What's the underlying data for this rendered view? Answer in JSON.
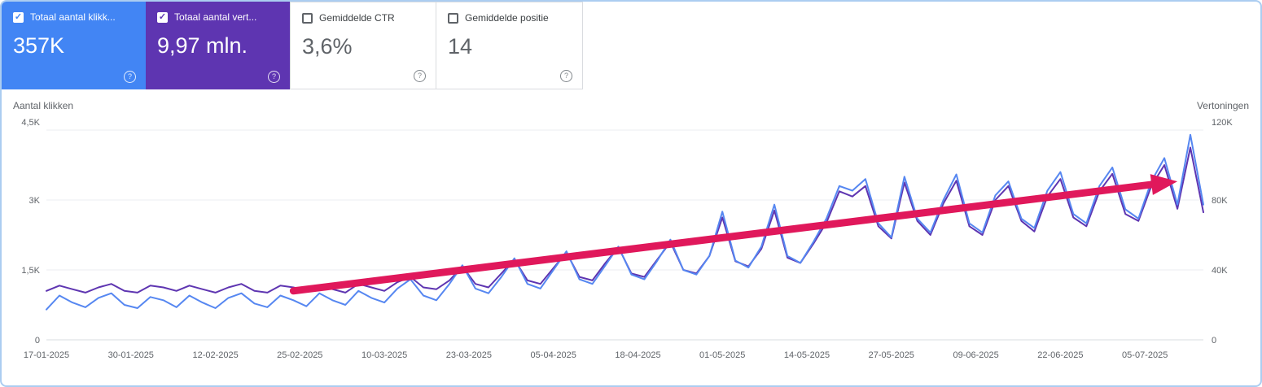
{
  "cards": [
    {
      "label": "Totaal aantal klikk...",
      "value": "357K",
      "checked": true,
      "color": "#4285f4"
    },
    {
      "label": "Totaal aantal vert...",
      "value": "9,97 mln.",
      "checked": true,
      "color": "#5e35b1"
    },
    {
      "label": "Gemiddelde CTR",
      "value": "3,6%",
      "checked": false
    },
    {
      "label": "Gemiddelde positie",
      "value": "14",
      "checked": false
    }
  ],
  "icons": {
    "help": "?",
    "check": "✓"
  },
  "chart_data": {
    "type": "line",
    "title": "Google Search Console prestaties",
    "grid": "horizontal",
    "legend_position": "none",
    "x_day_step": 2,
    "x_tick_days": [
      0,
      13,
      26,
      39,
      52,
      65,
      78,
      91,
      104,
      117,
      130,
      143,
      156,
      169
    ],
    "x_tick_labels": [
      "17-01-2025",
      "30-01-2025",
      "12-02-2025",
      "25-02-2025",
      "10-03-2025",
      "23-03-2025",
      "05-04-2025",
      "18-04-2025",
      "01-05-2025",
      "14-05-2025",
      "27-05-2025",
      "09-06-2025",
      "22-06-2025",
      "05-07-2025"
    ],
    "left_axis": {
      "label": "Aantal klikken",
      "ticks": [
        "0",
        "1,5K",
        "3K",
        "4,5K"
      ],
      "max": 4.5,
      "unit": "K clicks"
    },
    "right_axis": {
      "label": "Vertoningen",
      "ticks": [
        "0",
        "40K",
        "80K",
        "120K"
      ],
      "max": 120,
      "unit": "K impressions"
    },
    "series": [
      {
        "name": "Totaal aantal vertoningen",
        "axis": "right",
        "color": "#5e35b1",
        "values": [
          28,
          31,
          29,
          27,
          30,
          32,
          28,
          27,
          31,
          30,
          28,
          31,
          29,
          27,
          30,
          32,
          28,
          27,
          31,
          30,
          28,
          31,
          29,
          27,
          32,
          30,
          28,
          33,
          36,
          30,
          29,
          34,
          42,
          32,
          30,
          38,
          46,
          34,
          32,
          41,
          50,
          36,
          34,
          44,
          53,
          38,
          36,
          46,
          56,
          40,
          38,
          48,
          70,
          45,
          42,
          52,
          74,
          47,
          44,
          55,
          67,
          85,
          82,
          88,
          65,
          58,
          90,
          68,
          60,
          78,
          91,
          65,
          60,
          80,
          88,
          68,
          62,
          82,
          92,
          70,
          65,
          85,
          95,
          72,
          68,
          88,
          100,
          75,
          110,
          73
        ]
      },
      {
        "name": "Totaal aantal klikken",
        "axis": "left",
        "color": "#5687f1",
        "values": [
          0.65,
          0.95,
          0.8,
          0.7,
          0.9,
          1.0,
          0.75,
          0.68,
          0.92,
          0.85,
          0.7,
          0.95,
          0.8,
          0.68,
          0.9,
          1.0,
          0.78,
          0.7,
          0.95,
          0.85,
          0.72,
          1.0,
          0.85,
          0.75,
          1.05,
          0.9,
          0.8,
          1.1,
          1.3,
          0.95,
          0.85,
          1.2,
          1.6,
          1.1,
          1.0,
          1.35,
          1.75,
          1.2,
          1.1,
          1.5,
          1.9,
          1.3,
          1.2,
          1.6,
          2.0,
          1.4,
          1.3,
          1.7,
          2.15,
          1.5,
          1.4,
          1.8,
          2.75,
          1.7,
          1.55,
          2.0,
          2.9,
          1.8,
          1.65,
          2.1,
          2.6,
          3.3,
          3.2,
          3.45,
          2.5,
          2.2,
          3.5,
          2.6,
          2.3,
          3.0,
          3.55,
          2.5,
          2.3,
          3.1,
          3.4,
          2.6,
          2.4,
          3.2,
          3.6,
          2.7,
          2.5,
          3.3,
          3.7,
          2.8,
          2.6,
          3.4,
          3.9,
          2.9,
          4.4,
          2.9
        ]
      }
    ],
    "annotation": {
      "type": "arrow",
      "color": "#e0185b",
      "axis": "left",
      "from": {
        "day": 38,
        "value": 1.05
      },
      "to": {
        "day": 174,
        "value": 3.4
      }
    }
  }
}
